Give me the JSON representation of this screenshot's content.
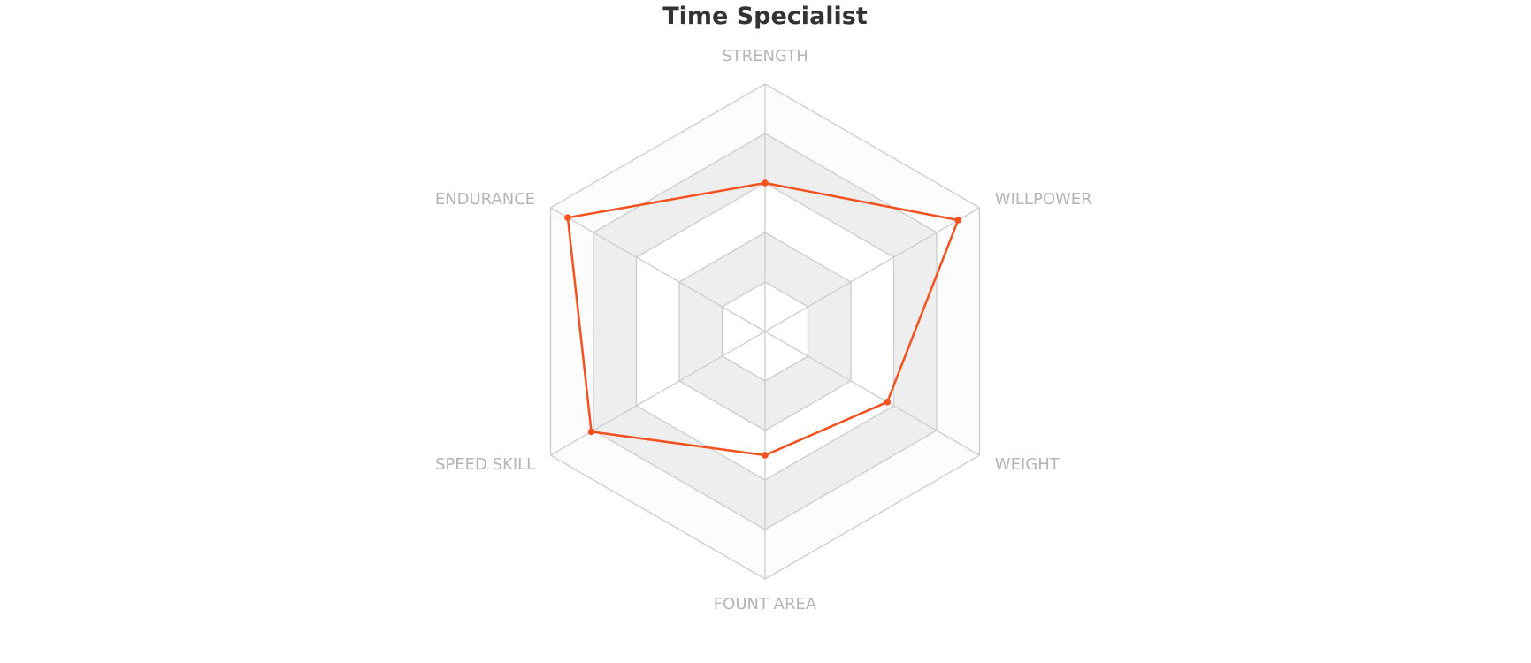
{
  "chart_data": {
    "type": "radar",
    "title": "Time Specialist",
    "indicators": [
      "STRENGTH",
      "WILLPOWER",
      "WEIGHT",
      "FOUNT AREA",
      "SPEED SKILL",
      "ENDURANCE"
    ],
    "max": 100,
    "ring_count": 5,
    "series": [
      {
        "values": [
          60,
          90,
          57,
          50,
          81,
          92
        ],
        "color": "#f4511e"
      }
    ],
    "grid_color": "#cccccc",
    "band_colors": [
      "#ffffff",
      "#eeeeee",
      "#ffffff",
      "#eeeeee",
      "#fcfcfc"
    ]
  }
}
